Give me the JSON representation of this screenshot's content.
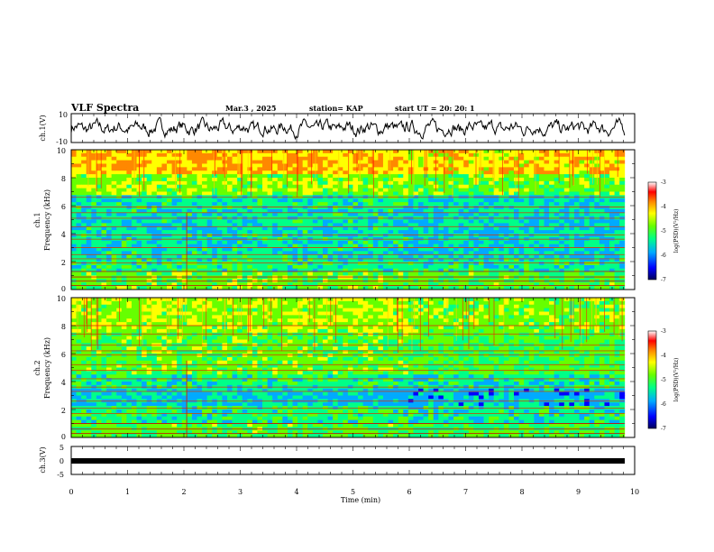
{
  "header": {
    "title": "VLF Spectra",
    "date": "Mar.3  , 2025",
    "station": "station= KAP",
    "start_ut": "start  UT  =   20: 20: 1"
  },
  "chart_data": [
    {
      "type": "line",
      "panel": "ch1-waveform",
      "ylabel": "ch.1(V)",
      "ylim": [
        -10,
        10
      ],
      "ytick_labels": [
        "10",
        "-10"
      ],
      "xlim": [
        0,
        10
      ],
      "approx_amplitude": 5
    },
    {
      "type": "heatmap",
      "panel": "ch1-spectrogram",
      "ylabel_top": "ch.1",
      "ylabel": "Frequency  (kHz)",
      "ylim": [
        0,
        10
      ],
      "ytick_labels": [
        "0",
        "2",
        "4",
        "6",
        "8",
        "10"
      ],
      "xlim": [
        0,
        10
      ],
      "data_end_min": 9.82,
      "colorbar": {
        "label": "log(PSD)(V²/Hz)",
        "range": [
          -7,
          -3
        ],
        "tick_labels": [
          "-3",
          "-4",
          "-5",
          "-6",
          "-7"
        ],
        "colors": [
          "#00005a",
          "#0000ff",
          "#00aaff",
          "#00ff88",
          "#66ff00",
          "#ffff00",
          "#ff8800",
          "#ff0000",
          "#ffffff"
        ]
      },
      "horizontal_lines_khz": [
        0.3,
        0.6,
        0.9,
        1.3,
        1.9,
        2.2,
        2.5,
        3.0,
        3.6,
        3.9,
        4.5,
        5.1,
        5.5,
        5.9,
        6.6
      ],
      "vertical_line_min": 2.05
    },
    {
      "type": "heatmap",
      "panel": "ch2-spectrogram",
      "ylabel_top": "ch.2",
      "ylabel": "Frequency  (kHz)",
      "ylim": [
        0,
        10
      ],
      "ytick_labels": [
        "0",
        "2",
        "4",
        "6",
        "8",
        "10"
      ],
      "xlim": [
        0,
        10
      ],
      "data_end_min": 9.82,
      "colorbar": {
        "label": "log(PSD)(V²/Hz)",
        "range": [
          -7,
          -3
        ],
        "tick_labels": [
          "-3",
          "-4",
          "-5",
          "-6",
          "-7"
        ],
        "colors": [
          "#00005a",
          "#0000ff",
          "#00aaff",
          "#00ff88",
          "#66ff00",
          "#ffff00",
          "#ff8800",
          "#ff0000",
          "#ffffff"
        ]
      },
      "horizontal_lines_khz": [
        0.3,
        0.6,
        1.0,
        1.7,
        2.1,
        2.6,
        3.3,
        3.6,
        4.2,
        4.8,
        5.2,
        5.9,
        6.2,
        6.6,
        7.4,
        8.0
      ],
      "vertical_line_min": 2.05
    },
    {
      "type": "line",
      "panel": "ch3-waveform",
      "ylabel": "ch.3(V)",
      "ylim": [
        -5,
        5
      ],
      "ytick_labels": [
        "5",
        "0",
        "-5"
      ],
      "xlim": [
        0,
        10
      ],
      "approx_level": 0,
      "xlabel": "Time  (min)",
      "xtick_labels": [
        "0",
        "1",
        "2",
        "3",
        "4",
        "5",
        "6",
        "7",
        "8",
        "9",
        "10"
      ]
    }
  ]
}
